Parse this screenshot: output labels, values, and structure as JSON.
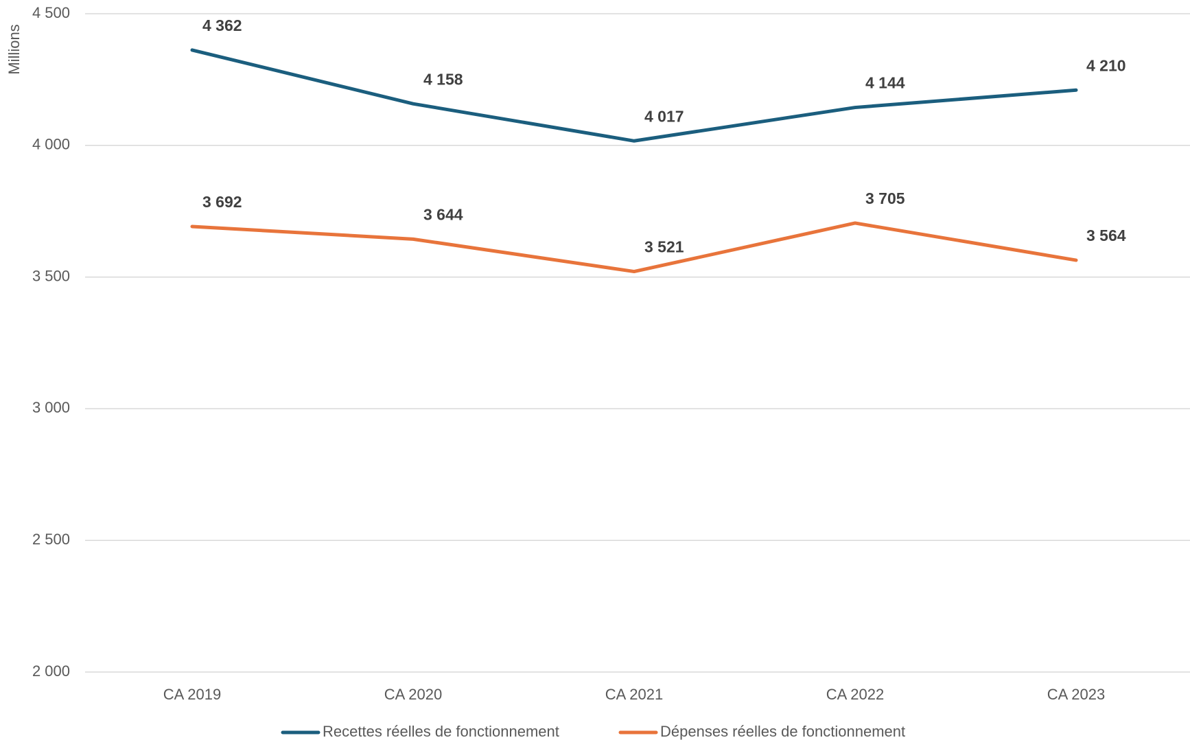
{
  "chart_data": {
    "type": "line",
    "y_label": "Millions",
    "categories": [
      "CA 2019",
      "CA 2020",
      "CA 2021",
      "CA 2022",
      "CA 2023"
    ],
    "series": [
      {
        "name": "Recettes réelles de fonctionnement",
        "color": "#1b5e7e",
        "values": [
          4362,
          4158,
          4017,
          4144,
          4210
        ],
        "value_labels": [
          "4 362",
          "4 158",
          "4 017",
          "4 144",
          "4 210"
        ]
      },
      {
        "name": "Dépenses réelles de fonctionnement",
        "color": "#e8743b",
        "values": [
          3692,
          3644,
          3521,
          3705,
          3564
        ],
        "value_labels": [
          "3 692",
          "3 644",
          "3 521",
          "3 705",
          "3 564"
        ]
      }
    ],
    "ylim": [
      2000,
      4500
    ],
    "yticks": [
      {
        "value": 2000,
        "label": "2 000"
      },
      {
        "value": 2500,
        "label": "2 500"
      },
      {
        "value": 3000,
        "label": "3 000"
      },
      {
        "value": 3500,
        "label": "3 500"
      },
      {
        "value": 4000,
        "label": "4 000"
      },
      {
        "value": 4500,
        "label": "4 500"
      }
    ],
    "grid": true
  }
}
